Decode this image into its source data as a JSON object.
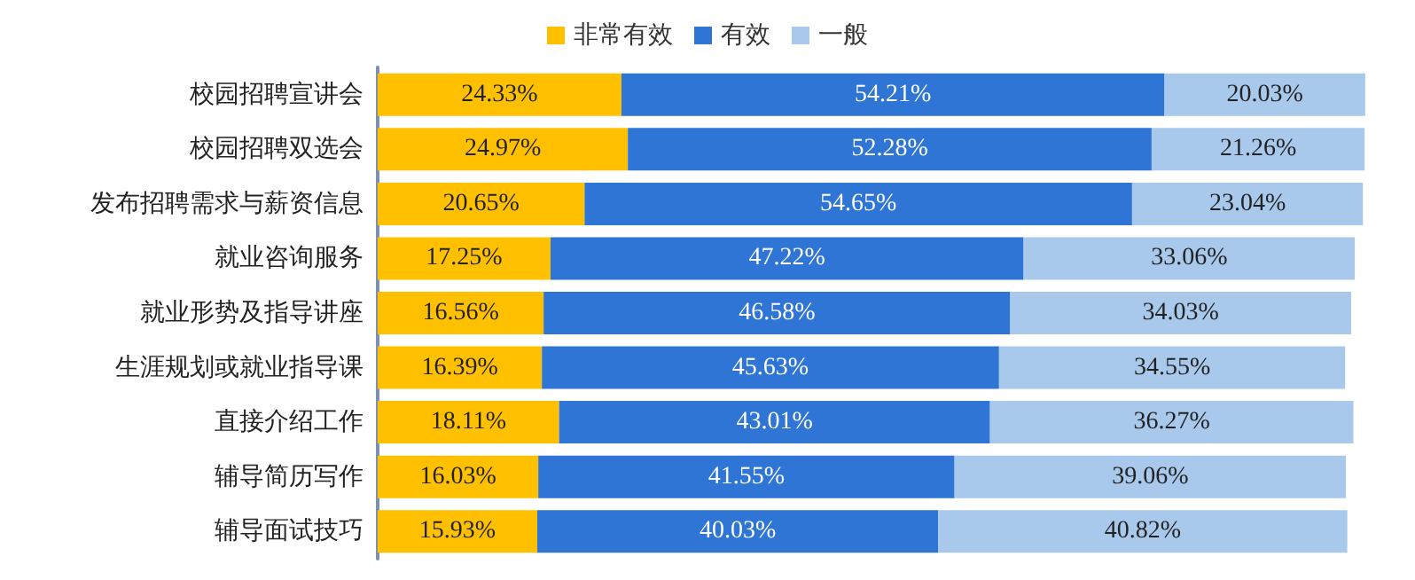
{
  "chart_data": {
    "type": "bar",
    "orientation": "horizontal",
    "stacked": true,
    "legend": "top",
    "categories": [
      "校园招聘宣讲会",
      "校园招聘双选会",
      "发布招聘需求与薪资信息",
      "就业咨询服务",
      "就业形势及指导讲座",
      "生涯规划或就业指导课",
      "直接介绍工作",
      "辅导简历写作",
      "辅导面试技巧"
    ],
    "series": [
      {
        "name": "非常有效",
        "color": "#ffc000",
        "values": [
          24.33,
          24.97,
          20.65,
          17.25,
          16.56,
          16.39,
          18.11,
          16.03,
          15.93
        ],
        "value_labels": [
          "24.33%",
          "24.97%",
          "20.65%",
          "17.25%",
          "16.56%",
          "16.39%",
          "18.11%",
          "16.03%",
          "15.93%"
        ]
      },
      {
        "name": "有效",
        "color": "#2e75d6",
        "values": [
          54.21,
          52.28,
          54.65,
          47.22,
          46.58,
          45.63,
          43.01,
          41.55,
          40.03
        ],
        "value_labels": [
          "54.21%",
          "52.28%",
          "54.65%",
          "47.22%",
          "46.58%",
          "45.63%",
          "43.01%",
          "41.55%",
          "40.03%"
        ]
      },
      {
        "name": "一般",
        "color": "#a9c9ec",
        "values": [
          20.03,
          21.26,
          23.04,
          33.06,
          34.03,
          34.55,
          36.27,
          39.06,
          40.82
        ],
        "value_labels": [
          "20.03%",
          "21.26%",
          "23.04%",
          "33.06%",
          "34.03%",
          "34.55%",
          "36.27%",
          "39.06%",
          "40.82%"
        ]
      }
    ]
  }
}
